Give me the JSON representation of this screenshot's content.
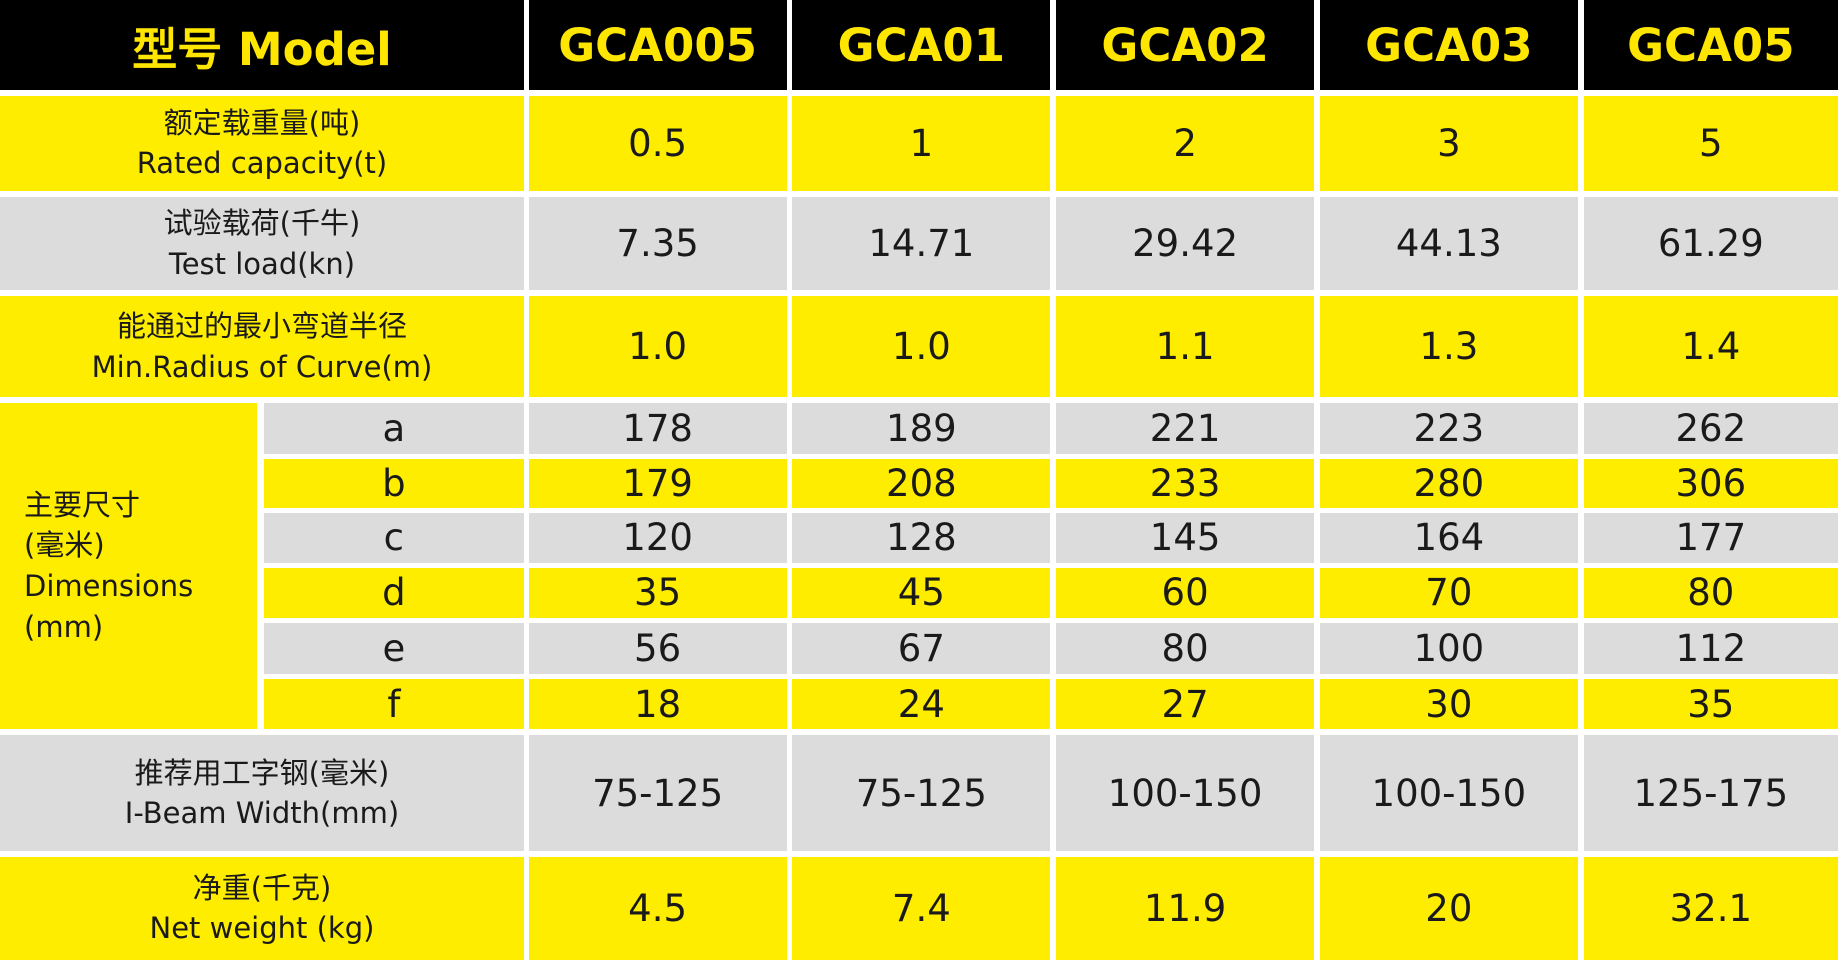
{
  "header": {
    "label": "型号 Model",
    "models": [
      "GCA005",
      "GCA01",
      "GCA02",
      "GCA03",
      "GCA05"
    ]
  },
  "rows_top": [
    {
      "label_cn": "额定载重量(吨)",
      "label_en": "Rated capacity(t)",
      "values": [
        "0.5",
        "1",
        "2",
        "3",
        "5"
      ]
    },
    {
      "label_cn": "试验载荷(千牛)",
      "label_en": "Test load(kn)",
      "values": [
        "7.35",
        "14.71",
        "29.42",
        "44.13",
        "61.29"
      ]
    },
    {
      "label_cn": "能通过的最小弯道半径",
      "label_en": "Min.Radius of Curve(m)",
      "values": [
        "1.0",
        "1.0",
        "1.1",
        "1.3",
        "1.4"
      ]
    }
  ],
  "dimensions": {
    "label_lines": [
      "主要尺寸",
      "(毫米)",
      "Dimensions",
      "(mm)"
    ],
    "rows": [
      {
        "key": "a",
        "values": [
          "178",
          "189",
          "221",
          "223",
          "262"
        ]
      },
      {
        "key": "b",
        "values": [
          "179",
          "208",
          "233",
          "280",
          "306"
        ]
      },
      {
        "key": "c",
        "values": [
          "120",
          "128",
          "145",
          "164",
          "177"
        ]
      },
      {
        "key": "d",
        "values": [
          "35",
          "45",
          "60",
          "70",
          "80"
        ]
      },
      {
        "key": "e",
        "values": [
          "56",
          "67",
          "80",
          "100",
          "112"
        ]
      },
      {
        "key": "f",
        "values": [
          "18",
          "24",
          "27",
          "30",
          "35"
        ]
      }
    ]
  },
  "rows_bottom": [
    {
      "label_cn": "推荐用工字钢(毫米)",
      "label_en": "I-Beam Width(mm)",
      "values": [
        "75-125",
        "75-125",
        "100-150",
        "100-150",
        "125-175"
      ]
    },
    {
      "label_cn": "净重(千克)",
      "label_en": "Net weight (kg)",
      "values": [
        "4.5",
        "7.4",
        "11.9",
        "20",
        "32.1"
      ]
    }
  ]
}
